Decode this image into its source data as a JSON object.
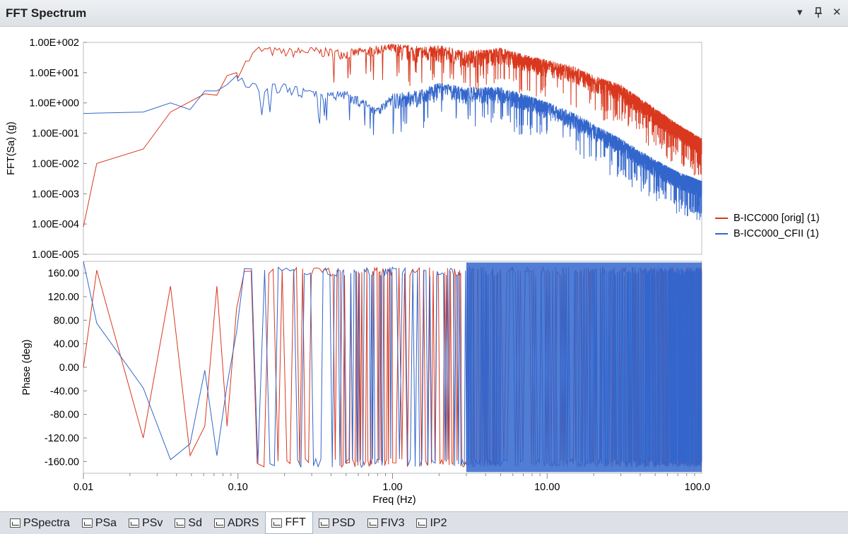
{
  "window": {
    "title": "FFT Spectrum",
    "controls": {
      "dropdown": "▾",
      "pin": "📌",
      "close": "✕"
    }
  },
  "colors": {
    "orig": "#d9381e",
    "cfii": "#3366cc",
    "axis": "#b8bcc4",
    "tabbar": "#dde1e7"
  },
  "chart_data": [
    {
      "type": "line",
      "ylabel": "FFT(Sa) (g)",
      "x_scale": "log",
      "y_scale": "log",
      "xlim": [
        0.01,
        100
      ],
      "ylim": [
        1e-05,
        100
      ],
      "ytick_labels": [
        "1.00E+002",
        "1.00E+001",
        "1.00E+000",
        "1.00E-001",
        "1.00E-002",
        "1.00E-003",
        "1.00E-004",
        "1.00E-005"
      ],
      "ytick_values": [
        100,
        10,
        1,
        0.1,
        0.01,
        0.001,
        0.0001,
        1e-05
      ],
      "series": [
        {
          "name": "B-ICC000 [orig]  (1)",
          "color": "#d9381e",
          "x": [
            0.01,
            0.0122,
            0.0244,
            0.0366,
            0.061,
            0.073,
            0.085,
            0.098,
            0.134,
            0.2,
            0.3,
            0.5,
            0.8,
            1.0,
            1.5,
            2.0,
            3.0,
            5.0,
            8.0,
            10,
            15,
            20,
            30,
            50,
            70,
            100
          ],
          "y": [
            8e-05,
            0.01,
            0.03,
            0.5,
            2,
            1.8,
            8,
            10,
            60,
            50,
            55,
            45,
            60,
            70,
            55,
            60,
            40,
            50,
            25,
            20,
            12,
            6,
            3,
            0.5,
            0.15,
            0.05
          ]
        },
        {
          "name": "B-ICC000_CFII (1)",
          "color": "#3366cc",
          "x": [
            0.01,
            0.0244,
            0.0366,
            0.049,
            0.061,
            0.073,
            0.085,
            0.098,
            0.134,
            0.2,
            0.3,
            0.5,
            0.8,
            1.0,
            1.5,
            2.0,
            3.0,
            5.0,
            8.0,
            10,
            15,
            20,
            30,
            50,
            70,
            100
          ],
          "y": [
            0.45,
            0.5,
            1,
            0.6,
            2.5,
            2.5,
            4,
            8,
            3,
            3.5,
            2,
            2,
            0.6,
            1.5,
            2,
            3.5,
            2.5,
            2.5,
            1.2,
            0.8,
            0.35,
            0.15,
            0.05,
            0.01,
            0.004,
            0.002
          ]
        }
      ]
    },
    {
      "type": "line",
      "xlabel": "Freq (Hz)",
      "ylabel": "Phase (deg)",
      "x_scale": "log",
      "xlim": [
        0.01,
        100
      ],
      "ylim": [
        -180,
        180
      ],
      "xtick_labels": [
        "0.01",
        "0.10",
        "1.00",
        "10.00",
        "100.0"
      ],
      "xtick_values": [
        0.01,
        0.1,
        1,
        10,
        100
      ],
      "ytick_labels": [
        "160.00",
        "120.00",
        "80.00",
        "40.00",
        "0.00",
        "-40.00",
        "-80.00",
        "-120.00",
        "-160.00"
      ],
      "ytick_values": [
        160,
        120,
        80,
        40,
        0,
        -40,
        -80,
        -120,
        -160
      ],
      "series": [
        {
          "name": "B-ICC000 [orig]  (1)",
          "color": "#d9381e",
          "x": [
            0.01,
            0.0122,
            0.0244,
            0.0366,
            0.049,
            0.061,
            0.073,
            0.085,
            0.098
          ],
          "y": [
            0,
            165,
            -120,
            138,
            -150,
            -100,
            138,
            -100,
            100
          ]
        },
        {
          "name": "B-ICC000_CFII (1)",
          "color": "#3366cc",
          "x": [
            0.01,
            0.0122,
            0.0244,
            0.0366,
            0.049,
            0.061,
            0.073,
            0.085,
            0.098
          ],
          "y": [
            180,
            75,
            -35,
            -157,
            -130,
            -5,
            -150,
            -30,
            60
          ]
        }
      ]
    }
  ],
  "legend": [
    {
      "label": "B-ICC000 [orig]  (1)",
      "color": "#d9381e"
    },
    {
      "label": "B-ICC000_CFII (1)",
      "color": "#3366cc"
    }
  ],
  "tabs": [
    {
      "label": "PSpectra",
      "icon": "pspectra-icon"
    },
    {
      "label": "PSa",
      "icon": "psa-icon"
    },
    {
      "label": "PSv",
      "icon": "psv-icon"
    },
    {
      "label": "Sd",
      "icon": "sd-icon"
    },
    {
      "label": "ADRS",
      "icon": "adrs-icon"
    },
    {
      "label": "FFT",
      "icon": "fft-icon",
      "active": true
    },
    {
      "label": "PSD",
      "icon": "psd-icon"
    },
    {
      "label": "FIV3",
      "icon": "fiv3-icon"
    },
    {
      "label": "IP2",
      "icon": "ip2-icon"
    }
  ]
}
